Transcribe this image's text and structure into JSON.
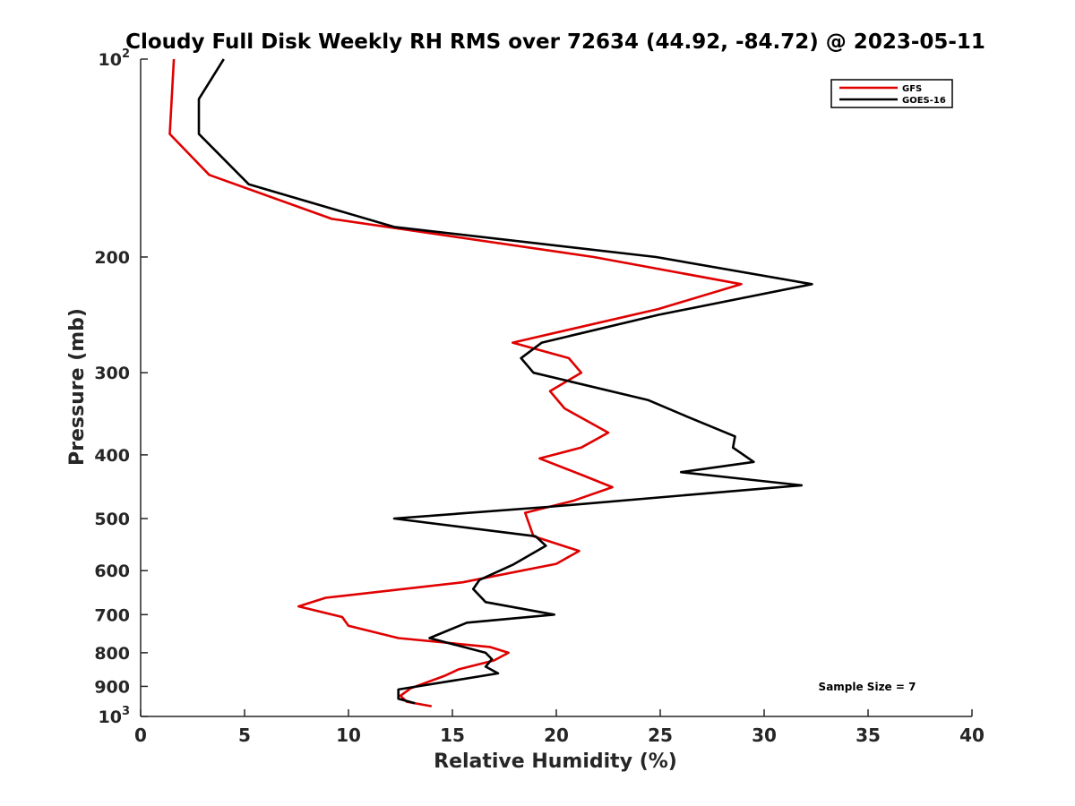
{
  "chart_data": {
    "type": "line",
    "title": "Cloudy Full Disk Weekly RH RMS over 72634 (44.92, -84.72) @ 2023-05-11",
    "xlabel": "Relative Humidity (%)",
    "ylabel": "Pressure (mb)",
    "xlim": [
      0,
      40
    ],
    "ylim": [
      100,
      1000
    ],
    "y_scale": "log",
    "y_reversed": true,
    "x_ticks": [
      "0",
      "5",
      "10",
      "15",
      "20",
      "25",
      "30",
      "35",
      "40"
    ],
    "y_ticks": [
      {
        "value": 100,
        "base": "10",
        "exp": "2"
      },
      {
        "value": 200,
        "label": "200"
      },
      {
        "value": 300,
        "label": "300"
      },
      {
        "value": 400,
        "label": "400"
      },
      {
        "value": 500,
        "label": "500"
      },
      {
        "value": 600,
        "label": "600"
      },
      {
        "value": 700,
        "label": "700"
      },
      {
        "value": 800,
        "label": "800"
      },
      {
        "value": 900,
        "label": "900"
      },
      {
        "value": 1000,
        "base": "10",
        "exp": "3"
      }
    ],
    "legend_position": "top-right",
    "annotation": "Sample Size = 7",
    "series": [
      {
        "name": "GFS",
        "color": "#e00000",
        "points": [
          [
            1.6,
            100
          ],
          [
            1.4,
            130
          ],
          [
            3.3,
            150
          ],
          [
            9.2,
            175
          ],
          [
            21.8,
            200
          ],
          [
            28.9,
            220
          ],
          [
            24.9,
            240
          ],
          [
            17.9,
            270
          ],
          [
            20.6,
            285
          ],
          [
            21.2,
            300
          ],
          [
            19.7,
            320
          ],
          [
            20.4,
            340
          ],
          [
            22.5,
            370
          ],
          [
            21.2,
            390
          ],
          [
            19.2,
            405
          ],
          [
            21.3,
            430
          ],
          [
            22.7,
            448
          ],
          [
            20.8,
            470
          ],
          [
            18.5,
            490
          ],
          [
            18.9,
            532
          ],
          [
            21.1,
            560
          ],
          [
            20.0,
            586
          ],
          [
            15.5,
            625
          ],
          [
            8.9,
            660
          ],
          [
            7.6,
            680
          ],
          [
            9.7,
            706
          ],
          [
            10.0,
            728
          ],
          [
            12.4,
            760
          ],
          [
            16.8,
            784
          ],
          [
            17.7,
            800
          ],
          [
            17.0,
            822
          ],
          [
            15.3,
            848
          ],
          [
            14.6,
            868
          ],
          [
            13.0,
            906
          ],
          [
            12.5,
            930
          ],
          [
            12.8,
            950
          ],
          [
            14.0,
            965
          ]
        ]
      },
      {
        "name": "GOES-16",
        "color": "#000000",
        "points": [
          [
            4.0,
            100
          ],
          [
            2.8,
            115
          ],
          [
            2.8,
            130
          ],
          [
            5.2,
            155
          ],
          [
            12.2,
            180
          ],
          [
            24.8,
            200
          ],
          [
            32.3,
            220
          ],
          [
            24.9,
            245
          ],
          [
            19.3,
            270
          ],
          [
            18.3,
            285
          ],
          [
            18.9,
            300
          ],
          [
            24.4,
            330
          ],
          [
            26.3,
            350
          ],
          [
            28.6,
            375
          ],
          [
            28.5,
            390
          ],
          [
            29.5,
            410
          ],
          [
            26.0,
            425
          ],
          [
            31.8,
            445
          ],
          [
            19.6,
            480
          ],
          [
            12.2,
            500
          ],
          [
            19.0,
            532
          ],
          [
            19.5,
            550
          ],
          [
            17.9,
            588
          ],
          [
            16.3,
            620
          ],
          [
            16.0,
            640
          ],
          [
            16.6,
            670
          ],
          [
            19.9,
            700
          ],
          [
            15.7,
            720
          ],
          [
            13.9,
            760
          ],
          [
            16.6,
            800
          ],
          [
            16.9,
            818
          ],
          [
            16.6,
            840
          ],
          [
            17.2,
            860
          ],
          [
            12.4,
            910
          ],
          [
            12.4,
            940
          ],
          [
            13.2,
            955
          ]
        ]
      }
    ]
  }
}
